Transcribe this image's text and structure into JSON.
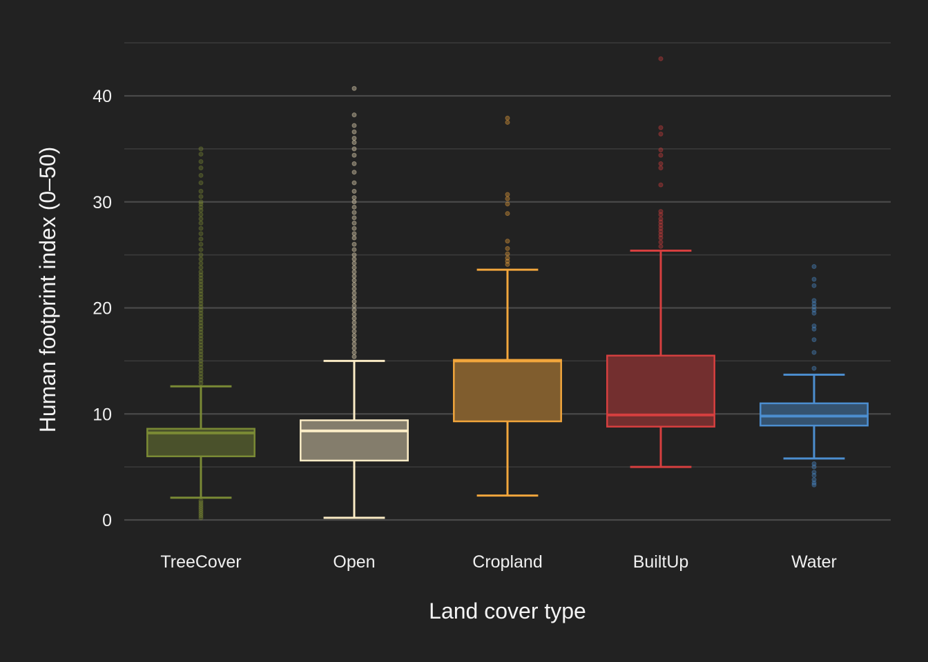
{
  "chart_data": {
    "type": "box",
    "xlabel": "Land cover type",
    "ylabel": "Human footprint index (0–50)",
    "ylim": [
      -2.3,
      45.5
    ],
    "yticks": [
      0,
      10,
      20,
      30,
      40
    ],
    "grid": true,
    "categories": [
      "TreeCover",
      "Open",
      "Cropland",
      "BuiltUp",
      "Water"
    ],
    "colors": [
      "#7a8a35",
      "#fbecc6",
      "#f2a63c",
      "#d63f3f",
      "#4c8ed0"
    ],
    "boxes": [
      {
        "name": "TreeCover",
        "whisker_low": 2.1,
        "q1": 6.0,
        "median": 8.2,
        "q3": 8.6,
        "whisker_high": 12.6,
        "outliers": [
          0.2,
          0.4,
          0.6,
          0.8,
          1.0,
          1.2,
          1.4,
          1.6,
          1.8,
          12.9,
          13.2,
          13.5,
          13.8,
          14.1,
          14.4,
          14.7,
          15.0,
          15.3,
          15.6,
          15.9,
          16.2,
          16.5,
          16.8,
          17.1,
          17.4,
          17.7,
          18.0,
          18.3,
          18.6,
          18.9,
          19.2,
          19.5,
          19.8,
          20.1,
          20.4,
          20.7,
          21.0,
          21.3,
          21.6,
          21.9,
          22.2,
          22.5,
          22.8,
          23.1,
          23.4,
          23.8,
          24.2,
          24.6,
          25.0,
          25.5,
          26.0,
          26.5,
          27.0,
          27.5,
          28.0,
          28.4,
          28.8,
          29.2,
          29.5,
          29.8,
          30.0,
          30.5,
          31.0,
          31.8,
          32.5,
          33.2,
          33.8,
          34.5,
          35.0
        ]
      },
      {
        "name": "Open",
        "whisker_low": 0.2,
        "q1": 5.6,
        "median": 8.4,
        "q3": 9.4,
        "whisker_high": 15.0,
        "outliers": [
          15.4,
          15.8,
          16.2,
          16.6,
          17.0,
          17.4,
          17.8,
          18.2,
          18.6,
          19.0,
          19.4,
          19.8,
          20.2,
          20.6,
          21.0,
          21.4,
          21.8,
          22.2,
          22.6,
          23.0,
          23.4,
          23.8,
          24.2,
          24.6,
          25.0,
          25.5,
          26.0,
          26.6,
          27.0,
          27.5,
          28.0,
          28.5,
          29.0,
          29.5,
          30.0,
          30.4,
          31.0,
          31.8,
          32.8,
          33.6,
          34.4,
          35.0,
          35.6,
          36.0,
          36.6,
          37.2,
          38.2,
          40.7
        ]
      },
      {
        "name": "Cropland",
        "whisker_low": 2.3,
        "q1": 9.3,
        "median": 15.0,
        "q3": 15.1,
        "whisker_high": 23.6,
        "outliers": [
          24.1,
          24.4,
          24.7,
          25.1,
          25.6,
          26.3,
          28.9,
          29.8,
          30.3,
          30.7,
          37.5,
          37.9
        ]
      },
      {
        "name": "BuiltUp",
        "whisker_low": 5.0,
        "q1": 8.8,
        "median": 9.9,
        "q3": 15.5,
        "whisker_high": 25.4,
        "outliers": [
          25.8,
          26.2,
          26.6,
          26.9,
          27.2,
          27.5,
          27.8,
          28.1,
          28.4,
          28.8,
          29.1,
          31.6,
          33.2,
          33.6,
          34.4,
          34.9,
          36.4,
          37.0,
          43.5
        ]
      },
      {
        "name": "Water",
        "whisker_low": 5.8,
        "q1": 8.9,
        "median": 9.8,
        "q3": 11.0,
        "whisker_high": 13.7,
        "outliers": [
          3.3,
          3.5,
          3.8,
          4.2,
          4.5,
          5.0,
          5.3,
          14.3,
          15.8,
          17.0,
          18.0,
          18.3,
          19.5,
          19.8,
          20.1,
          20.4,
          20.7,
          22.1,
          22.7,
          23.9
        ]
      }
    ]
  }
}
